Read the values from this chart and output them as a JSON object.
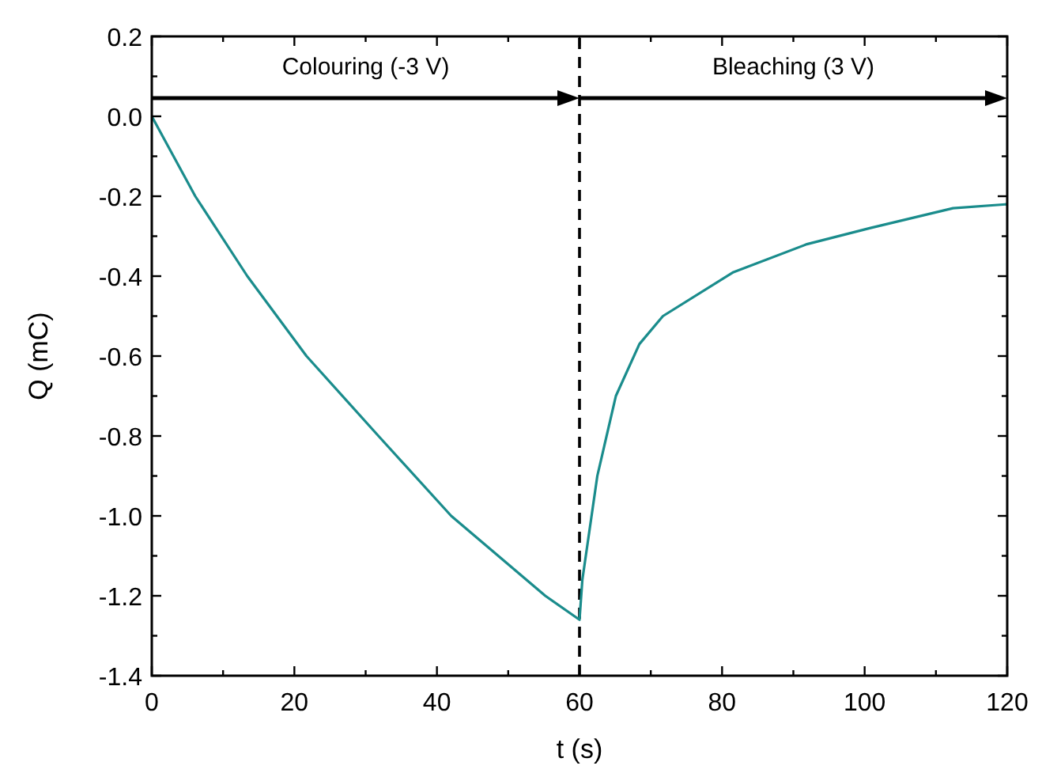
{
  "chart_data": {
    "type": "line",
    "xlabel": "t (s)",
    "ylabel": "Q (mC)",
    "xlim": [
      0,
      120
    ],
    "ylim": [
      -1.4,
      0.2
    ],
    "xticks": [
      0,
      {
        "value": 10,
        "label": null
      },
      20,
      {
        "value": 30,
        "label": null
      },
      40,
      {
        "value": 50,
        "label": null
      },
      60,
      {
        "value": 70,
        "label": null
      },
      80,
      {
        "value": 90,
        "label": null
      },
      100,
      {
        "value": 110,
        "label": null
      },
      120
    ],
    "yticks": [
      {
        "value": -1.4,
        "label": "-1.4"
      },
      {
        "value": -1.3,
        "label": null
      },
      {
        "value": -1.2,
        "label": "-1.2"
      },
      {
        "value": -1.1,
        "label": null
      },
      {
        "value": -1.0,
        "label": "-1.0"
      },
      {
        "value": -0.9,
        "label": null
      },
      {
        "value": -0.8,
        "label": "-0.8"
      },
      {
        "value": -0.7,
        "label": null
      },
      {
        "value": -0.6,
        "label": "-0.6"
      },
      {
        "value": -0.5,
        "label": null
      },
      {
        "value": -0.4,
        "label": "-0.4"
      },
      {
        "value": -0.3,
        "label": null
      },
      {
        "value": -0.2,
        "label": "-0.2"
      },
      {
        "value": -0.1,
        "label": null
      },
      {
        "value": 0,
        "label": "0.0"
      },
      {
        "value": 0.1,
        "label": null
      },
      {
        "value": 0.2,
        "label": "0.2"
      }
    ],
    "grid": false,
    "marker": "none",
    "line_style": "solid",
    "ref_lines": [
      {
        "axis": "x",
        "value": 60,
        "color": "#000000",
        "line_style": "dashed"
      }
    ],
    "annotations": [
      "Colouring (-3 V)",
      "Bleaching (3 V)"
    ],
    "series": [
      {
        "color": "#1a8c8c",
        "x": [
          0,
          6.1,
          13.4,
          21.7,
          31.8,
          42,
          55.2,
          60,
          60.4,
          62.5,
          65.1,
          68.4,
          71.7,
          81.6,
          91.9,
          100.7,
          112.4,
          120
        ],
        "values": [
          0,
          -0.2,
          -0.4,
          -0.6,
          -0.8,
          -1.0,
          -1.2,
          -1.26,
          -1.16,
          -0.9,
          -0.7,
          -0.57,
          -0.5,
          -0.39,
          -0.32,
          -0.28,
          -0.23,
          -0.22
        ]
      }
    ]
  }
}
